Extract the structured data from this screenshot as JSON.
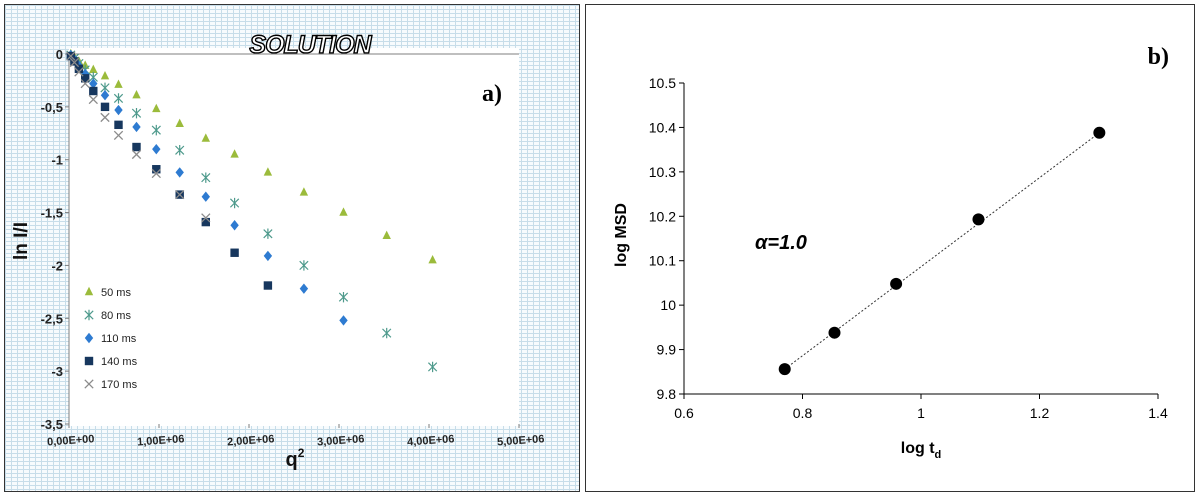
{
  "chart_data": [
    {
      "panel": "a)",
      "type": "scatter",
      "title": "SOLUTION",
      "xlabel": "q",
      "xlabel_sup": "2",
      "ylabel": "ln I/I",
      "xlim": [
        0,
        5000000
      ],
      "ylim": [
        -3.5,
        0
      ],
      "xticks": [
        {
          "v": 0,
          "label": "0,00E+00"
        },
        {
          "v": 1000000,
          "label": "1,00E+06"
        },
        {
          "v": 2000000,
          "label": "2,00E+06"
        },
        {
          "v": 3000000,
          "label": "3,00E+06"
        },
        {
          "v": 4000000,
          "label": "4,00E+06"
        },
        {
          "v": 5000000,
          "label": "5,00E+06"
        }
      ],
      "yticks": [
        {
          "v": 0,
          "label": "0"
        },
        {
          "v": -0.5,
          "label": "-0,5"
        },
        {
          "v": -1,
          "label": "-1"
        },
        {
          "v": -1.5,
          "label": "-1,5"
        },
        {
          "v": -2,
          "label": "-2"
        },
        {
          "v": -2.5,
          "label": "-2,5"
        },
        {
          "v": -3,
          "label": "-3"
        },
        {
          "v": -3.5,
          "label": "-3,5"
        }
      ],
      "legend_position": "bottom-left",
      "series": [
        {
          "name": "50 ms",
          "marker": "triangle",
          "color": "#9bbb3b",
          "x": [
            20000,
            60000,
            110000,
            180000,
            270000,
            400000,
            550000,
            750000,
            970000,
            1230000,
            1520000,
            1840000,
            2210000,
            2610000,
            3050000,
            3530000,
            4040000
          ],
          "y": [
            0,
            -0.03,
            -0.07,
            -0.11,
            -0.15,
            -0.21,
            -0.29,
            -0.39,
            -0.52,
            -0.66,
            -0.8,
            -0.95,
            -1.12,
            -1.31,
            -1.5,
            -1.72,
            -1.95
          ]
        },
        {
          "name": "80 ms",
          "marker": "asterisk",
          "color": "#4e9a8c",
          "x": [
            20000,
            60000,
            110000,
            180000,
            270000,
            400000,
            550000,
            750000,
            970000,
            1230000,
            1520000,
            1840000,
            2210000,
            2610000,
            3050000,
            3530000,
            4040000
          ],
          "y": [
            -0.01,
            -0.04,
            -0.09,
            -0.15,
            -0.22,
            -0.32,
            -0.42,
            -0.56,
            -0.72,
            -0.91,
            -1.17,
            -1.41,
            -1.7,
            -2.0,
            -2.3,
            -2.64,
            -2.96
          ]
        },
        {
          "name": "110 ms",
          "marker": "diamond",
          "color": "#2e7bd1",
          "x": [
            20000,
            60000,
            110000,
            180000,
            270000,
            400000,
            550000,
            750000,
            970000,
            1230000,
            1520000,
            1840000,
            2210000,
            2610000,
            3050000
          ],
          "y": [
            -0.01,
            -0.05,
            -0.11,
            -0.19,
            -0.28,
            -0.39,
            -0.53,
            -0.69,
            -0.9,
            -1.12,
            -1.35,
            -1.62,
            -1.91,
            -2.22,
            -2.52
          ]
        },
        {
          "name": "140 ms",
          "marker": "square",
          "color": "#17375e",
          "x": [
            20000,
            60000,
            110000,
            180000,
            270000,
            400000,
            550000,
            750000,
            970000,
            1230000,
            1520000,
            1840000,
            2210000
          ],
          "y": [
            -0.02,
            -0.07,
            -0.14,
            -0.23,
            -0.35,
            -0.5,
            -0.67,
            -0.88,
            -1.09,
            -1.33,
            -1.59,
            -1.88,
            -2.19
          ]
        },
        {
          "name": "170 ms",
          "marker": "x",
          "color": "#8c8c8c",
          "x": [
            20000,
            60000,
            110000,
            180000,
            270000,
            400000,
            550000,
            750000,
            970000,
            1230000,
            1520000
          ],
          "y": [
            -0.02,
            -0.08,
            -0.17,
            -0.28,
            -0.43,
            -0.6,
            -0.77,
            -0.95,
            -1.13,
            -1.33,
            -1.55
          ]
        }
      ]
    },
    {
      "panel": "b)",
      "type": "scatter",
      "xlabel": "log t",
      "xlabel_sub": "d",
      "ylabel": "log MSD",
      "annotation": "α=1.0",
      "xlim": [
        0.6,
        1.4
      ],
      "ylim": [
        9.8,
        10.5
      ],
      "xticks": [
        {
          "v": 0.6,
          "label": "0.6"
        },
        {
          "v": 0.8,
          "label": "0.8"
        },
        {
          "v": 1.0,
          "label": "1"
        },
        {
          "v": 1.2,
          "label": "1.2"
        },
        {
          "v": 1.4,
          "label": "1.4"
        }
      ],
      "yticks": [
        {
          "v": 9.8,
          "label": "9.8"
        },
        {
          "v": 9.9,
          "label": "9.9"
        },
        {
          "v": 10.0,
          "label": "10"
        },
        {
          "v": 10.1,
          "label": "10.1"
        },
        {
          "v": 10.2,
          "label": "10.2"
        },
        {
          "v": 10.3,
          "label": "10.3"
        },
        {
          "v": 10.4,
          "label": "10.4"
        },
        {
          "v": 10.5,
          "label": "10.5"
        }
      ],
      "grid": false,
      "points": {
        "x": [
          0.77,
          0.854,
          0.958,
          1.097,
          1.301
        ],
        "y": [
          9.856,
          9.938,
          10.048,
          10.193,
          10.388
        ]
      },
      "trendline": {
        "x": [
          0.77,
          1.301
        ],
        "y": [
          9.856,
          10.388
        ],
        "style": "dotted"
      }
    }
  ]
}
